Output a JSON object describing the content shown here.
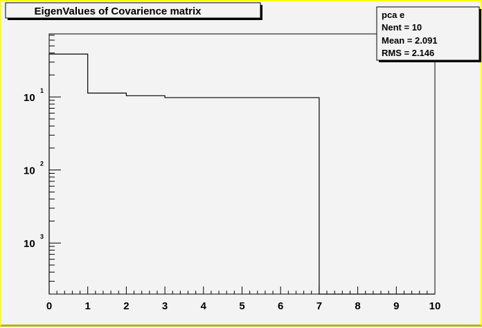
{
  "chart_data": {
    "type": "bar",
    "style": "step-histogram",
    "title": "EigenValues of Covarience matrix",
    "x_edges": [
      0,
      1,
      2,
      3,
      4,
      5,
      6,
      7,
      8,
      9,
      10
    ],
    "values": [
      0.387,
      0.113,
      0.104,
      0.098,
      0.098,
      0.098,
      0.098,
      0,
      0,
      0,
      0
    ],
    "xlim": [
      0,
      10
    ],
    "ylim": [
      0.0002,
      0.73
    ],
    "y_scale": "log",
    "x_tick_labels": [
      "0",
      "1",
      "2",
      "3",
      "4",
      "5",
      "6",
      "7",
      "8",
      "9",
      "10"
    ],
    "y_tick_labels": [
      {
        "value": 0.1,
        "base": "10",
        "exp": "1"
      },
      {
        "value": 0.01,
        "base": "10",
        "exp": "2"
      },
      {
        "value": 0.001,
        "base": "10",
        "exp": "3"
      }
    ],
    "grid": false,
    "stats": {
      "name": "pca  e",
      "lines": [
        "Nent = 10",
        "Mean  =  2.091",
        "RMS   =  2.146"
      ]
    },
    "colors": {
      "background": "#f3f3f3",
      "line": "#000000",
      "border": "#ffff00"
    }
  }
}
